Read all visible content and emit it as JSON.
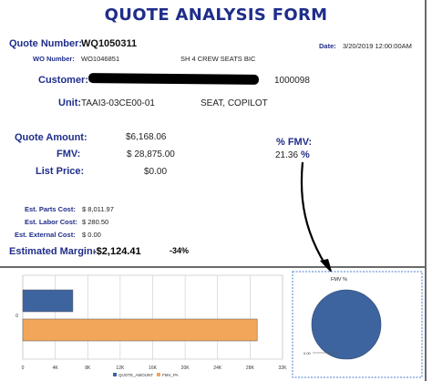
{
  "form": {
    "title": "QUOTE ANALYSIS FORM",
    "quote_number_label": "Quote Number:",
    "quote_number": "WQ1050311",
    "date_label": "Date:",
    "date_value": "3/20/2019 12:00:00AM",
    "wo_number_label": "WO Number:",
    "wo_number": "WO1046851",
    "wo_description": "SH 4 CREW SEATS BIC",
    "customer_label": "Customer:",
    "customer_number": "1000098",
    "unit_label": "Unit:",
    "unit_value": "TAAI3-03CE00-01",
    "unit_description": "SEAT, COPILOT",
    "quote_amount_label": "Quote Amount:",
    "quote_amount": "$6,168.06",
    "fmv_label": "FMV:",
    "fmv_value": "$ 28,875.00",
    "list_price_label": "List Price:",
    "list_price": "$0.00",
    "pct_fmv_label": "% FMV:",
    "pct_fmv_value": "21.36",
    "pct_fmv_suffix": "%",
    "parts_cost_label": "Est. Parts Cost:",
    "parts_cost": "$ 8,011.97",
    "labor_cost_label": "Est. Labor Cost:",
    "labor_cost": "$ 280.50",
    "external_cost_label": "Est. External Cost:",
    "external_cost": "$ 0.00",
    "margin_label": "Estimated Margin:",
    "margin_value": "-$2,124.41",
    "margin_pct": "-34%"
  },
  "chart_data": [
    {
      "type": "bar",
      "orientation": "horizontal",
      "categories": [
        "0"
      ],
      "series": [
        {
          "name": "QUOTE_AMOUNT",
          "values": [
            6168.06
          ],
          "color": "#3e64a0"
        },
        {
          "name": "FMV_PA",
          "values": [
            28875
          ],
          "color": "#f2a65a"
        }
      ],
      "x_ticks": [
        "0",
        "4K",
        "8K",
        "12K",
        "16K",
        "20K",
        "24K",
        "28K",
        "32K"
      ],
      "xlim": [
        0,
        32000
      ],
      "grid": true,
      "legend": "bottom"
    },
    {
      "type": "pie",
      "title": "FMV %",
      "slices": [
        {
          "label": "",
          "value": 100,
          "color": "#3e64a0"
        }
      ],
      "side_label": "0.00"
    }
  ]
}
